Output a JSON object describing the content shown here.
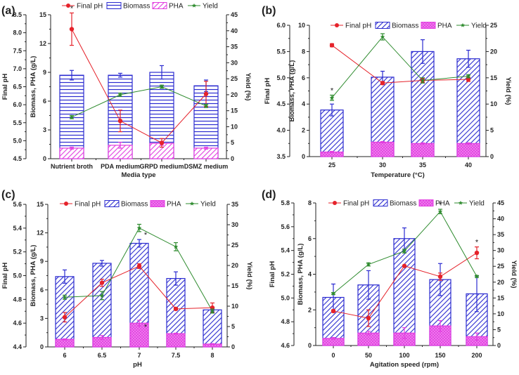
{
  "colors": {
    "ph": "#e5222a",
    "biomass": "#2b2bd0",
    "pha": "#e23de0",
    "yield": "#2e8b2e"
  },
  "legend_labels": [
    "Final pH",
    "Biomass",
    "PHA",
    "Yield"
  ],
  "chart_data": [
    {
      "panel": "(a)",
      "type": "bar",
      "xlabel": "Media type",
      "ylabel_left_outer": "Final pH",
      "ylabel_left_inner": "Biomass, PHA (g/L)",
      "ylabel_right": "Yield (%)",
      "categories": [
        "Nutrient broth",
        "PDA medium",
        "GRPD medium",
        "DSMZ medium"
      ],
      "ph_axis": {
        "range": [
          4.5,
          8.5
        ],
        "ticks": [
          "4.5",
          "5.0",
          "5.5",
          "6.0",
          "6.5",
          "7.0",
          "7.5",
          "8.0",
          "8.5"
        ]
      },
      "biomass_axis": {
        "range": [
          0,
          15
        ],
        "ticks": [
          "0",
          "3",
          "6",
          "9",
          "12",
          "15"
        ]
      },
      "yield_axis": {
        "range": [
          0,
          45
        ],
        "ticks": [
          "0",
          "5",
          "10",
          "15",
          "20",
          "25",
          "30",
          "35",
          "40",
          "45"
        ]
      },
      "bar_pattern": "horizontal",
      "series": [
        {
          "name": "Biomass",
          "values": [
            8.7,
            8.7,
            9.0,
            7.6
          ],
          "errors": [
            0.5,
            0.2,
            0.7,
            0.6
          ]
        },
        {
          "name": "PHA",
          "values": [
            1.1,
            1.4,
            1.6,
            1.1
          ],
          "errors": [
            0.1,
            0.3,
            0.2,
            0.1
          ]
        },
        {
          "name": "Final pH",
          "values": [
            8.1,
            5.55,
            4.94,
            6.3
          ],
          "errors": [
            0.45,
            0.3,
            0.12,
            0.35
          ]
        },
        {
          "name": "Yield",
          "values": [
            13,
            20,
            22.5,
            16.5
          ],
          "errors": [
            0.5,
            0.5,
            0.5,
            0.5
          ]
        }
      ],
      "annotations": [
        {
          "text": "*",
          "category": "Nutrient broth",
          "series": "Final pH"
        }
      ],
      "legend_placement": "top"
    },
    {
      "panel": "(b)",
      "type": "bar",
      "xlabel": "Temperature (°C)",
      "ylabel_left_outer": "Final pH",
      "ylabel_left_inner": "Biomass, PHA (g/L)",
      "ylabel_right": "Yield (%)",
      "categories": [
        "25",
        "30",
        "35",
        "40"
      ],
      "ph_axis": {
        "range": [
          3.5,
          6.0
        ],
        "ticks": [
          "3.5",
          "4.0",
          "4.5",
          "5.0",
          "5.5",
          "6.0"
        ]
      },
      "biomass_axis": {
        "range": [
          0,
          10
        ],
        "ticks": [
          "0",
          "2",
          "4",
          "6",
          "8",
          "10"
        ]
      },
      "yield_axis": {
        "range": [
          0,
          25
        ],
        "ticks": [
          "0",
          "5",
          "10",
          "15",
          "20",
          "25"
        ]
      },
      "bar_pattern": "diagonal",
      "series": [
        {
          "name": "Biomass",
          "values": [
            3.55,
            6.05,
            8.0,
            7.45
          ],
          "errors": [
            0.45,
            0.45,
            0.9,
            0.65
          ]
        },
        {
          "name": "PHA",
          "values": [
            0.35,
            1.1,
            1.0,
            1.0
          ],
          "errors": [
            0.05,
            0.05,
            0.05,
            0.05
          ]
        },
        {
          "name": "Final pH",
          "values": [
            5.62,
            4.9,
            4.95,
            4.97
          ],
          "errors": [
            0.03,
            0.03,
            0.04,
            0.04
          ]
        },
        {
          "name": "Yield",
          "values": [
            11.2,
            22.8,
            14.5,
            15.3
          ],
          "errors": [
            0.5,
            0.6,
            0.5,
            0.3
          ]
        }
      ],
      "annotations": [
        {
          "text": "*",
          "category": "25",
          "series": "Yield"
        }
      ],
      "legend_placement": "top"
    },
    {
      "panel": "(c)",
      "type": "bar",
      "xlabel": "pH",
      "ylabel_left_outer": "Final pH",
      "ylabel_left_inner": "Biomass, PHA (g/L)",
      "ylabel_right": "Yield (%)",
      "categories": [
        "6",
        "6.5",
        "7",
        "7.5",
        "8"
      ],
      "ph_axis": {
        "range": [
          4.4,
          5.6
        ],
        "ticks": [
          "4.4",
          "4.6",
          "4.8",
          "5.0",
          "5.2",
          "5.4",
          "5.6"
        ]
      },
      "biomass_axis": {
        "range": [
          0,
          15
        ],
        "ticks": [
          "0",
          "3",
          "6",
          "9",
          "12",
          "15"
        ]
      },
      "yield_axis": {
        "range": [
          0,
          35
        ],
        "ticks": [
          "0",
          "5",
          "10",
          "15",
          "20",
          "25",
          "30",
          "35"
        ]
      },
      "bar_pattern": "diagonal",
      "series": [
        {
          "name": "Biomass",
          "values": [
            7.4,
            8.8,
            10.9,
            7.2,
            3.9
          ],
          "errors": [
            0.7,
            0.3,
            0.4,
            0.7,
            0.2
          ]
        },
        {
          "name": "PHA",
          "values": [
            0.8,
            1.0,
            2.5,
            1.4,
            0.3
          ],
          "errors": [
            0.05,
            0.2,
            0.3,
            0.05,
            0.05
          ]
        },
        {
          "name": "Final pH",
          "values": [
            4.65,
            4.94,
            5.08,
            4.72,
            4.73
          ],
          "errors": [
            0.04,
            0.03,
            0.02,
            0.01,
            0.04
          ]
        },
        {
          "name": "Yield",
          "values": [
            12.2,
            12.6,
            29.2,
            24.6,
            8.8
          ],
          "errors": [
            0.5,
            1.0,
            0.9,
            1.0,
            0.5
          ]
        }
      ],
      "annotations": [
        {
          "text": "*",
          "category": "7",
          "series": "Biomass"
        },
        {
          "text": "*",
          "category": "7",
          "series": "PHA"
        }
      ],
      "legend_placement": "top"
    },
    {
      "panel": "(d)",
      "type": "bar",
      "xlabel": "Agitation speed (rpm)",
      "ylabel_left_outer": "Final pH",
      "ylabel_left_inner": "Biomass, PHA (g/L)",
      "ylabel_right": "Yield (%)",
      "categories": [
        "0",
        "50",
        "100",
        "150",
        "200"
      ],
      "ph_axis": {
        "range": [
          4.6,
          5.8
        ],
        "ticks": [
          "4.6",
          "4.8",
          "5.0",
          "5.2",
          "5.4",
          "5.6",
          "5.8"
        ]
      },
      "biomass_axis": {
        "range": [
          0,
          8
        ],
        "ticks": [
          "0",
          "2",
          "4",
          "6",
          "8"
        ]
      },
      "yield_axis": {
        "range": [
          0,
          45
        ],
        "ticks": [
          "0",
          "5",
          "10",
          "15",
          "20",
          "25",
          "30",
          "35",
          "40",
          "45"
        ]
      },
      "bar_pattern": "diagonal",
      "series": [
        {
          "name": "Biomass",
          "values": [
            2.7,
            3.4,
            6.0,
            3.7,
            2.9
          ],
          "errors": [
            0.75,
            0.8,
            0.6,
            0.9,
            1.0
          ]
        },
        {
          "name": "PHA",
          "values": [
            0.4,
            0.7,
            0.7,
            1.1,
            0.5
          ],
          "errors": [
            0.05,
            0.1,
            0.3,
            0.3,
            0.2
          ]
        },
        {
          "name": "Final pH",
          "values": [
            4.89,
            4.83,
            5.27,
            5.18,
            5.38
          ],
          "errors": [
            0.01,
            0.07,
            0.0,
            0.03,
            0.05
          ]
        },
        {
          "name": "Yield",
          "values": [
            16.4,
            25.6,
            29.8,
            42.3,
            21.8
          ],
          "errors": [
            0.3,
            0.5,
            0.6,
            0.7,
            0.3
          ]
        }
      ],
      "annotations": [
        {
          "text": "*",
          "category": "150",
          "series": "Yield"
        },
        {
          "text": "*",
          "category": "200",
          "series": "Final pH"
        }
      ],
      "legend_placement": "top"
    }
  ]
}
